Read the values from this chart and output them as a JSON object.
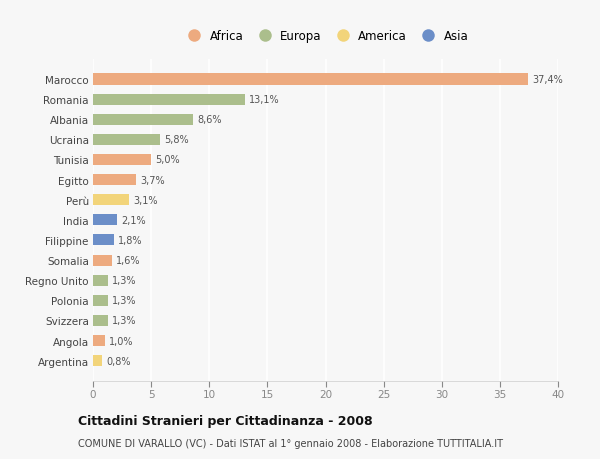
{
  "countries": [
    "Marocco",
    "Romania",
    "Albania",
    "Ucraina",
    "Tunisia",
    "Egitto",
    "Perù",
    "India",
    "Filippine",
    "Somalia",
    "Regno Unito",
    "Polonia",
    "Svizzera",
    "Angola",
    "Argentina"
  ],
  "values": [
    37.4,
    13.1,
    8.6,
    5.8,
    5.0,
    3.7,
    3.1,
    2.1,
    1.8,
    1.6,
    1.3,
    1.3,
    1.3,
    1.0,
    0.8
  ],
  "labels": [
    "37,4%",
    "13,1%",
    "8,6%",
    "5,8%",
    "5,0%",
    "3,7%",
    "3,1%",
    "2,1%",
    "1,8%",
    "1,6%",
    "1,3%",
    "1,3%",
    "1,3%",
    "1,0%",
    "0,8%"
  ],
  "continents": [
    "Africa",
    "Europa",
    "Europa",
    "Europa",
    "Africa",
    "Africa",
    "America",
    "Asia",
    "Asia",
    "Africa",
    "Europa",
    "Europa",
    "Europa",
    "Africa",
    "America"
  ],
  "colors": {
    "Africa": "#EDAA7F",
    "Europa": "#ABBE8C",
    "America": "#F2D47A",
    "Asia": "#6B8EC8"
  },
  "title": "Cittadini Stranieri per Cittadinanza - 2008",
  "subtitle": "COMUNE DI VARALLO (VC) - Dati ISTAT al 1° gennaio 2008 - Elaborazione TUTTITALIA.IT",
  "xlim": [
    0,
    40
  ],
  "xticks": [
    0,
    5,
    10,
    15,
    20,
    25,
    30,
    35,
    40
  ],
  "background_color": "#f7f7f7",
  "grid_color": "#ffffff",
  "bar_height": 0.55,
  "legend_order": [
    "Africa",
    "Europa",
    "America",
    "Asia"
  ]
}
